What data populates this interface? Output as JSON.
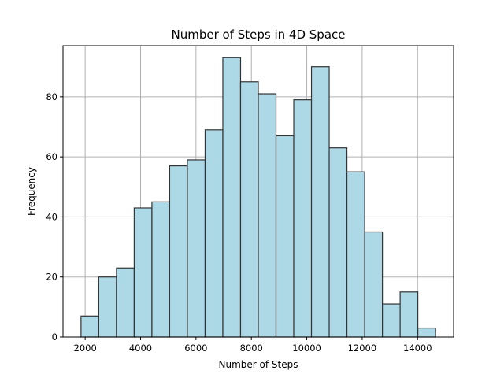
{
  "chart_data": {
    "type": "bar",
    "title": "Number of Steps in 4D Space",
    "xlabel": "Number of Steps",
    "ylabel": "Frequency",
    "xlim": [
      1200,
      15300
    ],
    "ylim": [
      0,
      97
    ],
    "x_ticks": [
      2000,
      4000,
      6000,
      8000,
      10000,
      12000,
      14000
    ],
    "y_ticks": [
      0,
      20,
      40,
      60,
      80
    ],
    "grid": true,
    "bar_color": "#add8e6",
    "edge_color": "#333333",
    "bins": [
      {
        "start": 1850,
        "end": 2490,
        "value": 7
      },
      {
        "start": 2490,
        "end": 3130,
        "value": 20
      },
      {
        "start": 3130,
        "end": 3770,
        "value": 23
      },
      {
        "start": 3770,
        "end": 4410,
        "value": 43
      },
      {
        "start": 4410,
        "end": 5050,
        "value": 45
      },
      {
        "start": 5050,
        "end": 5690,
        "value": 57
      },
      {
        "start": 5690,
        "end": 6330,
        "value": 59
      },
      {
        "start": 6330,
        "end": 6970,
        "value": 69
      },
      {
        "start": 6970,
        "end": 7610,
        "value": 93
      },
      {
        "start": 7610,
        "end": 8250,
        "value": 85
      },
      {
        "start": 8250,
        "end": 8890,
        "value": 81
      },
      {
        "start": 8890,
        "end": 9530,
        "value": 67
      },
      {
        "start": 9530,
        "end": 10170,
        "value": 79
      },
      {
        "start": 10170,
        "end": 10810,
        "value": 90
      },
      {
        "start": 10810,
        "end": 11450,
        "value": 63
      },
      {
        "start": 11450,
        "end": 12090,
        "value": 55
      },
      {
        "start": 12090,
        "end": 12730,
        "value": 35
      },
      {
        "start": 12730,
        "end": 13370,
        "value": 11
      },
      {
        "start": 13370,
        "end": 14010,
        "value": 15
      },
      {
        "start": 14010,
        "end": 14650,
        "value": 3
      }
    ]
  }
}
